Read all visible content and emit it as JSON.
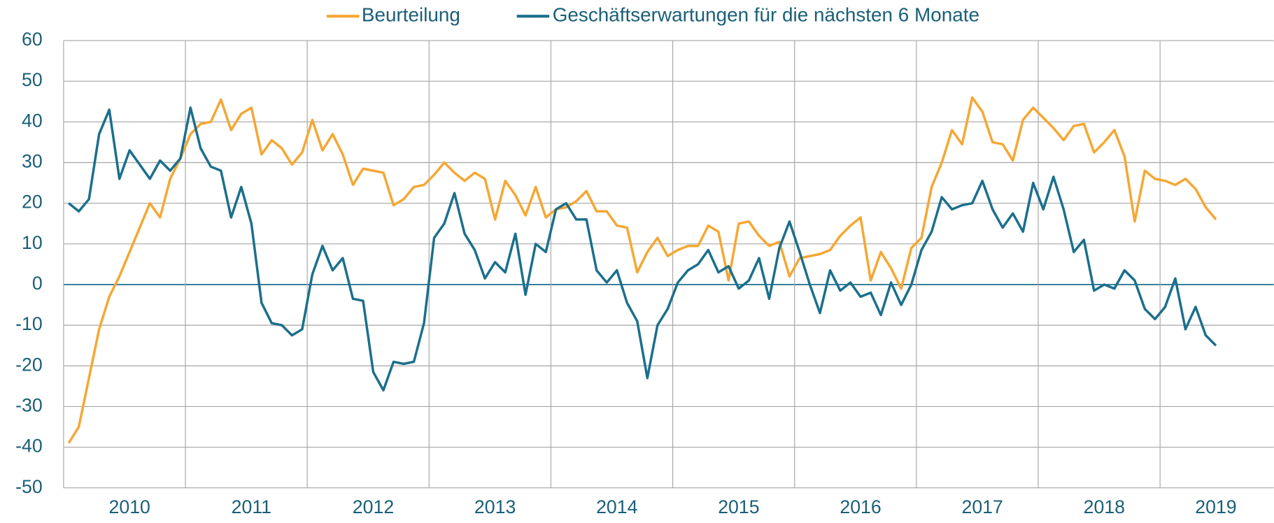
{
  "chart_data": {
    "type": "line",
    "categories": [
      null,
      null,
      null,
      null,
      null,
      null,
      "2010",
      null,
      null,
      null,
      null,
      null,
      null,
      null,
      null,
      null,
      null,
      null,
      "2011",
      null,
      null,
      null,
      null,
      null,
      null,
      null,
      null,
      null,
      null,
      null,
      "2012",
      null,
      null,
      null,
      null,
      null,
      null,
      null,
      null,
      null,
      null,
      null,
      "2013",
      null,
      null,
      null,
      null,
      null,
      null,
      null,
      null,
      null,
      null,
      null,
      "2014",
      null,
      null,
      null,
      null,
      null,
      null,
      null,
      null,
      null,
      null,
      null,
      "2015",
      null,
      null,
      null,
      null,
      null,
      null,
      null,
      null,
      null,
      null,
      null,
      "2016",
      null,
      null,
      null,
      null,
      null,
      null,
      null,
      null,
      null,
      null,
      null,
      "2017",
      null,
      null,
      null,
      null,
      null,
      null,
      null,
      null,
      null,
      null,
      null,
      "2018",
      null,
      null,
      null,
      null,
      null,
      null,
      null,
      null,
      null,
      null,
      "2019"
    ],
    "series": [
      {
        "name": "Beurteilung",
        "color": "#f5a733",
        "values": [
          -39,
          -35,
          -23,
          -11,
          -3,
          2,
          8,
          14,
          20,
          16.5,
          26,
          31,
          37,
          39.5,
          40,
          45.5,
          38,
          42,
          43.5,
          32,
          35.5,
          33.5,
          29.5,
          32.5,
          40.5,
          33,
          37,
          32,
          24.5,
          28.5,
          28,
          27.5,
          19.5,
          21,
          24,
          24.5,
          27,
          30,
          27.5,
          25.5,
          27.5,
          26,
          16,
          25.5,
          22,
          17,
          24,
          16.5,
          18.5,
          19,
          20.5,
          23,
          18,
          18,
          14.5,
          14,
          3,
          8,
          11.5,
          7,
          8.5,
          9.5,
          9.5,
          14.5,
          13,
          1,
          15,
          15.5,
          12,
          9.5,
          10.5,
          2,
          6.5,
          7,
          7.5,
          8.5,
          12,
          14.5,
          16.5,
          1,
          8,
          4,
          -1,
          9,
          11.5,
          24,
          30,
          38,
          34.5,
          46,
          42.5,
          35,
          34.5,
          30.5,
          40.5,
          43.5,
          41,
          38.5,
          35.5,
          39,
          39.5,
          32.5,
          35,
          38,
          31.5,
          15.5,
          28,
          26,
          25.5,
          24.5,
          26,
          23.5,
          19,
          16
        ]
      },
      {
        "name": "Geschäftserwartungen für die nächsten 6 Monate",
        "color": "#1b6f8c",
        "values": [
          20,
          18,
          21,
          37,
          43,
          26,
          33,
          29.5,
          26,
          30.5,
          28,
          31,
          43.5,
          33.5,
          29,
          28,
          16.5,
          24,
          15,
          -4.5,
          -9.5,
          -10,
          -12.5,
          -11,
          2.5,
          9.5,
          3.5,
          6.5,
          -3.5,
          -4,
          -21.5,
          -26,
          -19,
          -19.5,
          -19,
          -9.5,
          11.5,
          15,
          22.5,
          12.5,
          8.5,
          1.5,
          5.5,
          3,
          12.5,
          -2.5,
          10,
          8,
          18.5,
          20,
          16,
          16,
          3.5,
          0.5,
          3.5,
          -4.5,
          -9,
          -23,
          -10,
          -6,
          0.5,
          3.5,
          5,
          8.5,
          3,
          4.5,
          -1,
          1,
          6.5,
          -3.5,
          9,
          15.5,
          8,
          0,
          -7,
          3.5,
          -1.5,
          0.5,
          -3,
          -2,
          -7.5,
          0.5,
          -5,
          0,
          8.5,
          13,
          21.5,
          18.5,
          19.5,
          20,
          25.5,
          18.5,
          14,
          17.5,
          13,
          25,
          18.5,
          26.5,
          18.5,
          8,
          11,
          -1.5,
          0,
          -1,
          3.5,
          1,
          -6,
          -8.5,
          -5.5,
          1.5,
          -11,
          -5.5,
          -12.5,
          -15
        ]
      }
    ],
    "ylim": [
      -50,
      60
    ],
    "yticks": [
      -50,
      -40,
      -30,
      -20,
      -10,
      0,
      10,
      20,
      30,
      40,
      50,
      60
    ],
    "grid": true,
    "legend": "top"
  }
}
